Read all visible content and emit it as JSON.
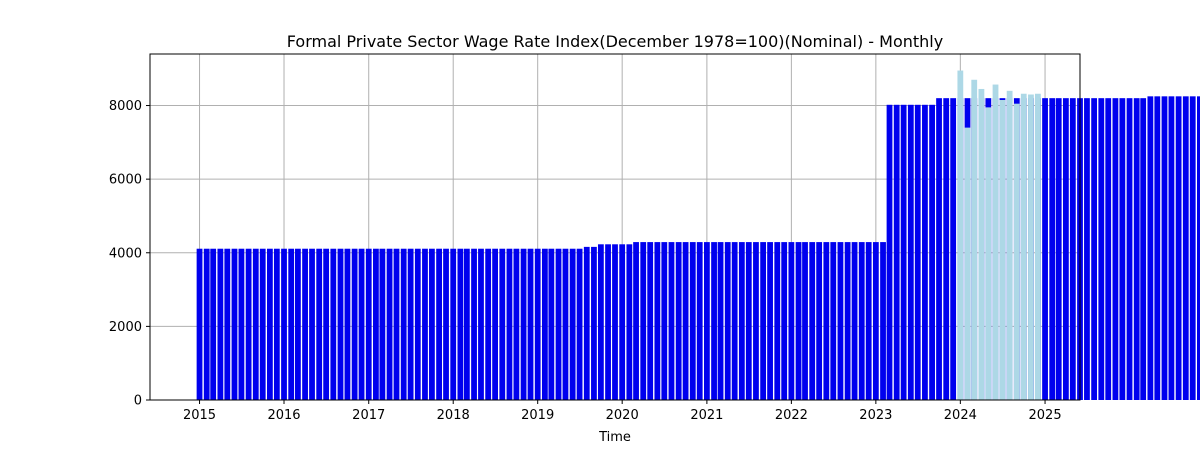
{
  "chart_data": {
    "type": "bar",
    "title": "Formal Private Sector Wage Rate Index(December 1978=100)(Nominal) - Monthly",
    "xlabel": "Time",
    "ylabel": "",
    "x_range": [
      "2014-06-01",
      "2025-06-01"
    ],
    "ylim": [
      0,
      9400
    ],
    "grid": true,
    "x_ticks": [
      "2015",
      "2016",
      "2017",
      "2018",
      "2019",
      "2020",
      "2021",
      "2022",
      "2023",
      "2024",
      "2025"
    ],
    "y_ticks": [
      "0",
      "2000",
      "4000",
      "6000",
      "8000"
    ],
    "colors": {
      "history": "#0000ee",
      "forecast": "#add8e6",
      "grid": "#b0b0b0"
    },
    "series": [
      {
        "role": "history",
        "x_start": "2015-01",
        "values": [
          4110,
          4110,
          4110,
          4110,
          4110,
          4110,
          4110,
          4110,
          4110,
          4110,
          4110,
          4110,
          4110,
          4110,
          4110,
          4110,
          4110,
          4110,
          4110,
          4110,
          4110,
          4110,
          4110,
          4110,
          4110,
          4110,
          4110,
          4110,
          4110,
          4110,
          4110,
          4110,
          4110,
          4110,
          4110,
          4110,
          4110,
          4110,
          4110,
          4110,
          4110,
          4110,
          4110,
          4110,
          4110,
          4110,
          4110,
          4110,
          4110,
          4110,
          4110,
          4110,
          4110,
          4110,
          4110,
          4160,
          4160,
          4230,
          4230,
          4230,
          4230,
          4230,
          4290,
          4290,
          4290,
          4290,
          4290,
          4290,
          4290,
          4290,
          4290,
          4290,
          4290,
          4290,
          4290,
          4290,
          4290,
          4290,
          4290,
          4290,
          4290,
          4290,
          4290,
          4290,
          4290,
          4290,
          4290,
          4290,
          4290,
          4290,
          4290,
          4290,
          4290,
          4290,
          4290,
          4290,
          4290,
          4290,
          8020,
          8020,
          8020,
          8020,
          8020,
          8020,
          8020,
          8200,
          8200,
          8200,
          8200,
          8200,
          8200,
          8200,
          8200,
          8200,
          8200,
          8200,
          8200,
          8200,
          8200,
          8200,
          8200,
          8200,
          8200,
          8200,
          8200,
          8200,
          8200,
          8200,
          8200,
          8200,
          8200,
          8200,
          8200,
          8200,
          8200,
          8250,
          8250,
          8250,
          8250,
          8250,
          8250,
          8250,
          8250,
          8250,
          8250,
          8250
        ]
      },
      {
        "role": "forecast",
        "x_start": "2024-01",
        "values": [
          8950,
          7400,
          8700,
          8450,
          7950,
          8570,
          8150,
          8400,
          8050,
          8320,
          8300,
          8320
        ]
      }
    ]
  }
}
